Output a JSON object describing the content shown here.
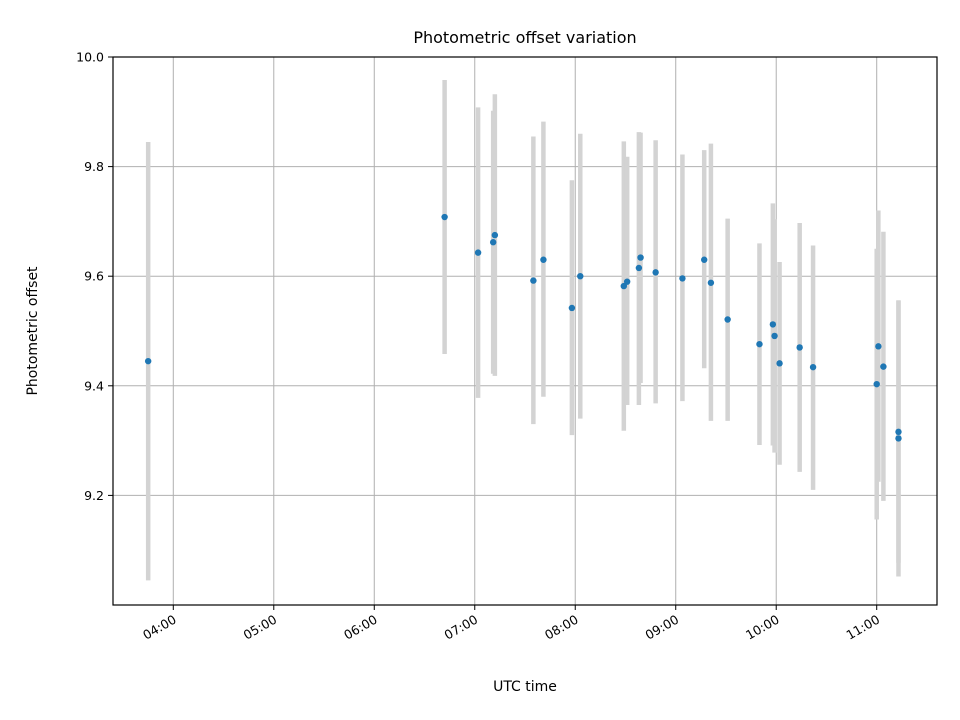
{
  "chart_data": {
    "type": "scatter",
    "title": "Photometric offset variation",
    "xlabel": "UTC time",
    "ylabel": "Photometric offset",
    "x_unit": "UTC time (HH:MM)",
    "xlim": [
      "03:24",
      "11:36"
    ],
    "ylim": [
      9.0,
      10.0
    ],
    "xticks": [
      "04:00",
      "05:00",
      "06:00",
      "07:00",
      "08:00",
      "09:00",
      "10:00",
      "11:00"
    ],
    "yticks": [
      9.2,
      9.4,
      9.6,
      9.8,
      10.0
    ],
    "ytick_labels": [
      "9.2",
      "9.4",
      "9.6",
      "9.8",
      "10.0"
    ],
    "grid": true,
    "marker_color": "#1f77b4",
    "errorbar_color": "#d3d3d3",
    "points": [
      {
        "x": "03:45",
        "y": 9.445,
        "lo": 9.045,
        "hi": 9.845
      },
      {
        "x": "06:42",
        "y": 9.708,
        "lo": 9.458,
        "hi": 9.958
      },
      {
        "x": "07:02",
        "y": 9.643,
        "lo": 9.378,
        "hi": 9.908
      },
      {
        "x": "07:11",
        "y": 9.662,
        "lo": 9.422,
        "hi": 9.902
      },
      {
        "x": "07:12",
        "y": 9.675,
        "lo": 9.418,
        "hi": 9.932
      },
      {
        "x": "07:35",
        "y": 9.592,
        "lo": 9.33,
        "hi": 9.855
      },
      {
        "x": "07:41",
        "y": 9.63,
        "lo": 9.38,
        "hi": 9.882
      },
      {
        "x": "07:58",
        "y": 9.542,
        "lo": 9.31,
        "hi": 9.775
      },
      {
        "x": "08:03",
        "y": 9.6,
        "lo": 9.34,
        "hi": 9.86
      },
      {
        "x": "08:29",
        "y": 9.582,
        "lo": 9.318,
        "hi": 9.846
      },
      {
        "x": "08:31",
        "y": 9.59,
        "lo": 9.365,
        "hi": 9.818
      },
      {
        "x": "08:38",
        "y": 9.615,
        "lo": 9.365,
        "hi": 9.863
      },
      {
        "x": "08:39",
        "y": 9.634,
        "lo": 9.405,
        "hi": 9.862
      },
      {
        "x": "08:48",
        "y": 9.607,
        "lo": 9.368,
        "hi": 9.848
      },
      {
        "x": "09:04",
        "y": 9.596,
        "lo": 9.372,
        "hi": 9.822
      },
      {
        "x": "09:17",
        "y": 9.63,
        "lo": 9.432,
        "hi": 9.83
      },
      {
        "x": "09:21",
        "y": 9.588,
        "lo": 9.336,
        "hi": 9.842
      },
      {
        "x": "09:31",
        "y": 9.521,
        "lo": 9.336,
        "hi": 9.705
      },
      {
        "x": "09:50",
        "y": 9.476,
        "lo": 9.292,
        "hi": 9.66
      },
      {
        "x": "09:58",
        "y": 9.512,
        "lo": 9.291,
        "hi": 9.733
      },
      {
        "x": "09:59",
        "y": 9.491,
        "lo": 9.278,
        "hi": 9.704
      },
      {
        "x": "10:02",
        "y": 9.441,
        "lo": 9.256,
        "hi": 9.626
      },
      {
        "x": "10:14",
        "y": 9.47,
        "lo": 9.243,
        "hi": 9.697
      },
      {
        "x": "10:22",
        "y": 9.434,
        "lo": 9.21,
        "hi": 9.656
      },
      {
        "x": "11:00",
        "y": 9.403,
        "lo": 9.156,
        "hi": 9.65
      },
      {
        "x": "11:01",
        "y": 9.472,
        "lo": 9.225,
        "hi": 9.72
      },
      {
        "x": "11:04",
        "y": 9.435,
        "lo": 9.19,
        "hi": 9.681
      },
      {
        "x": "11:13",
        "y": 9.316,
        "lo": 9.077,
        "hi": 9.555
      },
      {
        "x": "11:13",
        "y": 9.304,
        "lo": 9.052,
        "hi": 9.556
      }
    ]
  }
}
